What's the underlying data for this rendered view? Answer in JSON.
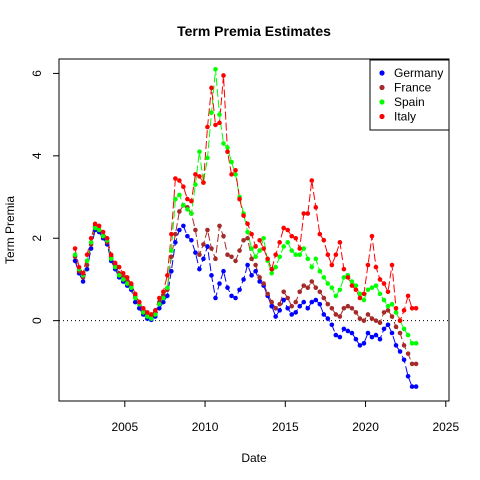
{
  "chart_data": {
    "type": "line",
    "title": "Term Premia Estimates",
    "xlabel": "Date",
    "ylabel": "Term Premia",
    "xlim": [
      2000.9,
      2025.2
    ],
    "ylim": [
      -1.95,
      6.35
    ],
    "xticks": [
      "2005",
      "2010",
      "2015",
      "2020",
      "2025"
    ],
    "yticks": [
      "0",
      "2",
      "4",
      "6"
    ],
    "reference_line": {
      "y": 0,
      "style": "dotted"
    },
    "legend": {
      "position": "top-right"
    },
    "x": [
      2001.9,
      2002.15,
      2002.4,
      2002.65,
      2002.9,
      2003.15,
      2003.4,
      2003.65,
      2003.9,
      2004.15,
      2004.4,
      2004.65,
      2004.9,
      2005.15,
      2005.4,
      2005.65,
      2005.9,
      2006.15,
      2006.4,
      2006.65,
      2006.9,
      2007.15,
      2007.4,
      2007.65,
      2007.9,
      2008.15,
      2008.4,
      2008.65,
      2008.9,
      2009.15,
      2009.4,
      2009.65,
      2009.9,
      2010.15,
      2010.4,
      2010.65,
      2010.9,
      2011.15,
      2011.4,
      2011.65,
      2011.9,
      2012.15,
      2012.4,
      2012.65,
      2012.9,
      2013.15,
      2013.4,
      2013.65,
      2013.9,
      2014.15,
      2014.4,
      2014.65,
      2014.9,
      2015.15,
      2015.4,
      2015.65,
      2015.9,
      2016.15,
      2016.4,
      2016.65,
      2016.9,
      2017.15,
      2017.4,
      2017.65,
      2017.9,
      2018.15,
      2018.4,
      2018.65,
      2018.9,
      2019.15,
      2019.4,
      2019.65,
      2019.9,
      2020.15,
      2020.4,
      2020.65,
      2020.9,
      2021.15,
      2021.4,
      2021.65,
      2021.9,
      2022.15,
      2022.4,
      2022.65,
      2022.9,
      2023.15
    ],
    "series": [
      {
        "name": "Germany",
        "color": "#0000FF",
        "values": [
          1.45,
          1.15,
          0.95,
          1.25,
          1.75,
          2.2,
          2.15,
          2.0,
          1.85,
          1.45,
          1.25,
          1.05,
          0.95,
          0.85,
          0.75,
          0.45,
          0.3,
          0.15,
          0.05,
          0.02,
          0.1,
          0.3,
          0.45,
          0.6,
          1.2,
          1.9,
          2.2,
          2.3,
          2.05,
          1.95,
          1.65,
          1.25,
          1.5,
          1.8,
          1.1,
          0.55,
          0.9,
          1.2,
          0.8,
          0.6,
          0.55,
          0.75,
          1.0,
          1.35,
          1.1,
          1.2,
          0.95,
          0.85,
          0.6,
          0.35,
          0.1,
          0.25,
          0.5,
          0.3,
          0.15,
          0.2,
          0.35,
          0.45,
          0.3,
          0.45,
          0.5,
          0.4,
          0.15,
          0.05,
          -0.1,
          -0.35,
          -0.4,
          -0.2,
          -0.25,
          -0.3,
          -0.45,
          -0.6,
          -0.55,
          -0.3,
          -0.4,
          -0.35,
          -0.45,
          -0.2,
          -0.1,
          -0.3,
          -0.6,
          -0.75,
          -0.95,
          -1.35,
          -1.6,
          -1.6
        ]
      },
      {
        "name": "France",
        "color": "#A52A2A",
        "values": [
          1.55,
          1.2,
          1.05,
          1.35,
          1.85,
          2.3,
          2.2,
          2.05,
          1.9,
          1.55,
          1.35,
          1.15,
          1.05,
          0.95,
          0.85,
          0.6,
          0.45,
          0.25,
          0.15,
          0.1,
          0.2,
          0.45,
          0.6,
          0.75,
          1.55,
          2.1,
          2.65,
          2.8,
          2.75,
          2.6,
          2.2,
          1.6,
          1.85,
          2.2,
          1.75,
          1.5,
          2.3,
          2.05,
          1.6,
          1.55,
          1.45,
          1.7,
          1.95,
          2.0,
          1.5,
          1.35,
          1.05,
          0.9,
          0.65,
          0.45,
          0.3,
          0.4,
          0.7,
          0.55,
          0.35,
          0.45,
          0.7,
          0.85,
          0.8,
          0.95,
          0.8,
          0.7,
          0.55,
          0.4,
          0.3,
          0.15,
          0.1,
          0.3,
          0.35,
          0.3,
          0.2,
          0.05,
          0.0,
          0.15,
          0.05,
          0.0,
          -0.05,
          0.2,
          0.25,
          0.1,
          -0.15,
          -0.3,
          -0.6,
          -0.8,
          -1.05,
          -1.05
        ]
      },
      {
        "name": "Spain",
        "color": "#00FF00",
        "values": [
          1.6,
          1.25,
          1.1,
          1.45,
          1.9,
          2.25,
          2.2,
          2.05,
          1.95,
          1.5,
          1.3,
          1.1,
          1.0,
          0.9,
          0.8,
          0.55,
          0.4,
          0.2,
          0.1,
          0.05,
          0.15,
          0.4,
          0.55,
          0.8,
          1.7,
          2.95,
          3.05,
          2.8,
          2.7,
          2.6,
          3.3,
          4.1,
          3.35,
          3.95,
          5.05,
          6.1,
          5.0,
          4.3,
          4.2,
          3.85,
          3.55,
          3.0,
          2.6,
          2.15,
          1.75,
          1.55,
          1.7,
          2.0,
          1.45,
          1.15,
          1.3,
          1.55,
          1.8,
          1.9,
          1.7,
          1.6,
          1.6,
          1.75,
          1.5,
          1.3,
          1.5,
          1.2,
          1.05,
          0.9,
          0.8,
          0.6,
          0.75,
          1.05,
          1.1,
          0.95,
          0.85,
          0.65,
          0.5,
          0.75,
          0.8,
          0.85,
          0.65,
          0.5,
          0.35,
          0.4,
          0.2,
          0.0,
          -0.2,
          -0.35,
          -0.55,
          -0.55
        ]
      },
      {
        "name": "Italy",
        "color": "#FF0000",
        "values": [
          1.75,
          1.3,
          1.15,
          1.6,
          2.0,
          2.35,
          2.3,
          2.15,
          2.0,
          1.6,
          1.4,
          1.3,
          1.15,
          1.05,
          0.9,
          0.65,
          0.45,
          0.3,
          0.2,
          0.15,
          0.25,
          0.55,
          0.7,
          1.1,
          2.1,
          3.45,
          3.4,
          3.25,
          2.95,
          2.9,
          3.55,
          3.5,
          3.35,
          4.7,
          5.65,
          4.75,
          4.8,
          5.95,
          4.1,
          3.55,
          3.65,
          2.95,
          2.55,
          2.35,
          2.1,
          1.8,
          1.95,
          1.75,
          1.5,
          1.25,
          1.6,
          1.9,
          2.25,
          2.2,
          2.05,
          2.0,
          1.75,
          2.6,
          2.6,
          3.4,
          2.75,
          2.1,
          1.95,
          1.6,
          1.35,
          1.6,
          1.9,
          1.25,
          1.05,
          0.85,
          0.75,
          0.55,
          0.65,
          1.35,
          2.05,
          1.3,
          1.0,
          0.9,
          0.7,
          1.35,
          0.3,
          0.0,
          0.25,
          0.6,
          0.3,
          0.3
        ]
      }
    ]
  }
}
